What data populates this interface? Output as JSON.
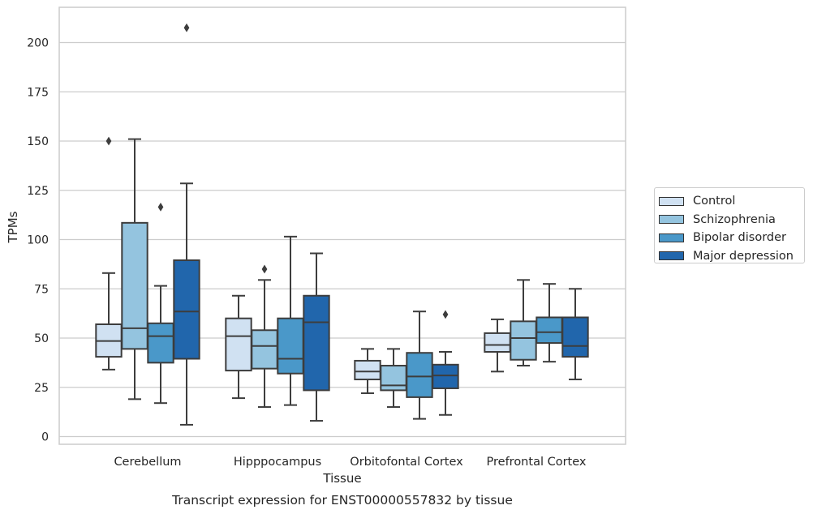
{
  "chart_data": {
    "type": "box",
    "title": "Transcript expression for ENST00000557832 by tissue",
    "xlabel": "Tissue",
    "ylabel": "TPMs",
    "ylim": [
      -4,
      220
    ],
    "yticks": [
      0,
      25,
      50,
      75,
      100,
      125,
      150,
      175,
      200
    ],
    "grid": "horizontal",
    "legend_position": "right, outside plot",
    "categories": [
      "Cerebellum",
      "Hipppocampus",
      "Orbitofontal Cortex",
      "Prefrontal Cortex"
    ],
    "series": [
      {
        "name": "Control",
        "color": "#d0e1f2",
        "boxes": [
          {
            "whislo": 34,
            "q1": 40.5,
            "med": 48.5,
            "q3": 57,
            "whishi": 83,
            "fliers": [
              150
            ]
          },
          {
            "whislo": 19.5,
            "q1": 33.5,
            "med": 51,
            "q3": 60,
            "whishi": 71.5,
            "fliers": []
          },
          {
            "whislo": 22,
            "q1": 29,
            "med": 33,
            "q3": 38.5,
            "whishi": 44.5,
            "fliers": []
          },
          {
            "whislo": 33,
            "q1": 43,
            "med": 46.5,
            "q3": 52.5,
            "whishi": 59.5,
            "fliers": []
          }
        ]
      },
      {
        "name": "Schizophrenia",
        "color": "#94c4df",
        "boxes": [
          {
            "whislo": 19,
            "q1": 44.5,
            "med": 55,
            "q3": 108.5,
            "whishi": 151,
            "fliers": []
          },
          {
            "whislo": 15,
            "q1": 34.5,
            "med": 46,
            "q3": 54,
            "whishi": 79.5,
            "fliers": [
              85
            ]
          },
          {
            "whislo": 15,
            "q1": 23.5,
            "med": 26,
            "q3": 36,
            "whishi": 44.5,
            "fliers": []
          },
          {
            "whislo": 36,
            "q1": 39,
            "med": 50,
            "q3": 58.5,
            "whishi": 79.5,
            "fliers": []
          }
        ]
      },
      {
        "name": "Bipolar disorder",
        "color": "#4a98c9",
        "boxes": [
          {
            "whislo": 17,
            "q1": 37.5,
            "med": 51,
            "q3": 57.5,
            "whishi": 76.5,
            "fliers": [
              116.5
            ]
          },
          {
            "whislo": 16,
            "q1": 32,
            "med": 39.5,
            "q3": 60,
            "whishi": 101.5,
            "fliers": []
          },
          {
            "whislo": 9,
            "q1": 20,
            "med": 30.5,
            "q3": 42.5,
            "whishi": 63.5,
            "fliers": []
          },
          {
            "whislo": 38,
            "q1": 47.5,
            "med": 53,
            "q3": 60.5,
            "whishi": 77.5,
            "fliers": []
          }
        ]
      },
      {
        "name": "Major depression",
        "color": "#2166ac",
        "boxes": [
          {
            "whislo": 6,
            "q1": 39.5,
            "med": 63.5,
            "q3": 89.5,
            "whishi": 128.5,
            "fliers": [
              207.5
            ]
          },
          {
            "whislo": 8,
            "q1": 23.5,
            "med": 58,
            "q3": 71.5,
            "whishi": 93,
            "fliers": []
          },
          {
            "whislo": 11,
            "q1": 24.5,
            "med": 31,
            "q3": 36.5,
            "whishi": 43,
            "fliers": [
              62
            ]
          },
          {
            "whislo": 29,
            "q1": 40.5,
            "med": 46,
            "q3": 60.5,
            "whishi": 75,
            "fliers": []
          }
        ]
      }
    ]
  }
}
